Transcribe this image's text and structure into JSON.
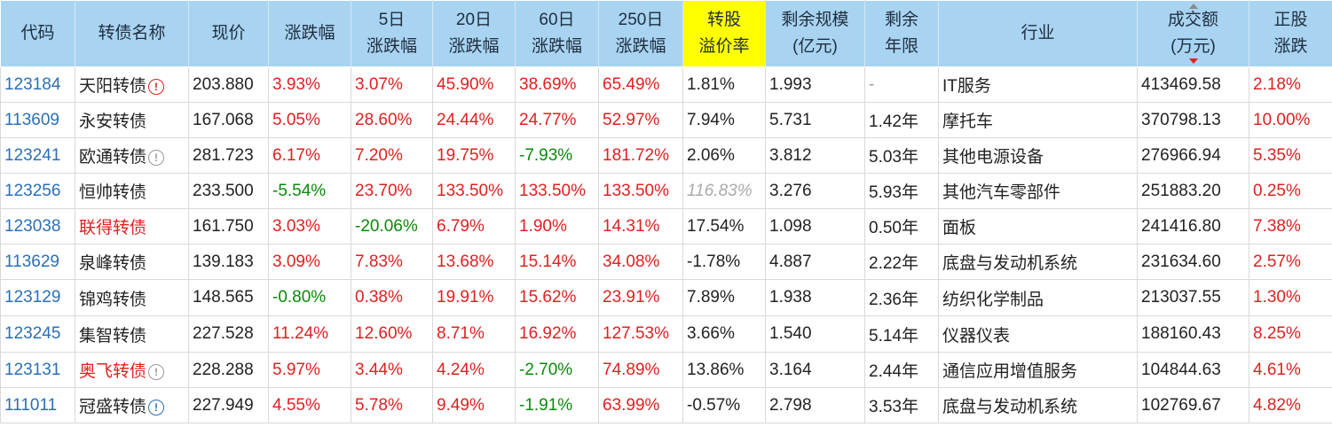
{
  "headers": [
    [
      "代码"
    ],
    [
      "转债名称"
    ],
    [
      "现价"
    ],
    [
      "涨跌幅"
    ],
    [
      "5日",
      "涨跌幅"
    ],
    [
      "20日",
      "涨跌幅"
    ],
    [
      "60日",
      "涨跌幅"
    ],
    [
      "250日",
      "涨跌幅"
    ],
    [
      "转股",
      "溢价率"
    ],
    [
      "剩余规模",
      "(亿元)"
    ],
    [
      "剩余",
      "年限"
    ],
    [
      "行业"
    ],
    [
      "成交额",
      "(万元)"
    ],
    [
      "正股",
      "涨跌"
    ]
  ],
  "rows": [
    {
      "code": "123184",
      "name": "天阳转债",
      "name_red": false,
      "icon": "warn",
      "price": "203.880",
      "chg": "3.93%",
      "c5": "3.07%",
      "c20": "45.90%",
      "c60": "38.69%",
      "c250": "65.49%",
      "prem": "1.81%",
      "prem_gray": false,
      "scale": "1.993",
      "years": "-",
      "industry": "IT服务",
      "turnover": "413469.58",
      "stock": "2.18%"
    },
    {
      "code": "113609",
      "name": "永安转债",
      "name_red": false,
      "icon": "",
      "price": "167.068",
      "chg": "5.05%",
      "c5": "28.60%",
      "c20": "24.44%",
      "c60": "24.77%",
      "c250": "52.97%",
      "prem": "7.94%",
      "prem_gray": false,
      "scale": "5.731",
      "years": "1.42年",
      "industry": "摩托车",
      "turnover": "370798.13",
      "stock": "10.00%"
    },
    {
      "code": "123241",
      "name": "欧通转债",
      "name_red": false,
      "icon": "grey",
      "price": "281.723",
      "chg": "6.17%",
      "c5": "7.20%",
      "c20": "19.75%",
      "c60": "-7.93%",
      "c250": "181.72%",
      "prem": "2.06%",
      "prem_gray": false,
      "scale": "3.812",
      "years": "5.03年",
      "industry": "其他电源设备",
      "turnover": "276966.94",
      "stock": "5.35%"
    },
    {
      "code": "123256",
      "name": "恒帅转债",
      "name_red": false,
      "icon": "",
      "price": "233.500",
      "chg": "-5.54%",
      "c5": "23.70%",
      "c20": "133.50%",
      "c60": "133.50%",
      "c250": "133.50%",
      "prem": "116.83%",
      "prem_gray": true,
      "scale": "3.276",
      "years": "5.93年",
      "industry": "其他汽车零部件",
      "turnover": "251883.20",
      "stock": "0.25%"
    },
    {
      "code": "123038",
      "name": "联得转债",
      "name_red": true,
      "icon": "",
      "price": "161.750",
      "chg": "3.03%",
      "c5": "-20.06%",
      "c20": "6.79%",
      "c60": "1.90%",
      "c250": "14.31%",
      "prem": "17.54%",
      "prem_gray": false,
      "scale": "1.098",
      "years": "0.50年",
      "industry": "面板",
      "turnover": "241416.80",
      "stock": "7.38%"
    },
    {
      "code": "113629",
      "name": "泉峰转债",
      "name_red": false,
      "icon": "",
      "price": "139.183",
      "chg": "3.09%",
      "c5": "7.83%",
      "c20": "13.68%",
      "c60": "15.14%",
      "c250": "34.08%",
      "prem": "-1.78%",
      "prem_gray": false,
      "scale": "4.887",
      "years": "2.22年",
      "industry": "底盘与发动机系统",
      "turnover": "231634.60",
      "stock": "2.57%"
    },
    {
      "code": "123129",
      "name": "锦鸡转债",
      "name_red": false,
      "icon": "",
      "price": "148.565",
      "chg": "-0.80%",
      "c5": "0.38%",
      "c20": "19.91%",
      "c60": "15.62%",
      "c250": "23.91%",
      "prem": "7.89%",
      "prem_gray": false,
      "scale": "1.938",
      "years": "2.36年",
      "industry": "纺织化学制品",
      "turnover": "213037.55",
      "stock": "1.30%"
    },
    {
      "code": "123245",
      "name": "集智转债",
      "name_red": false,
      "icon": "",
      "price": "227.528",
      "chg": "11.24%",
      "c5": "12.60%",
      "c20": "8.71%",
      "c60": "16.92%",
      "c250": "127.53%",
      "prem": "3.66%",
      "prem_gray": false,
      "scale": "1.540",
      "years": "5.14年",
      "industry": "仪器仪表",
      "turnover": "188160.43",
      "stock": "8.25%"
    },
    {
      "code": "123131",
      "name": "奥飞转债",
      "name_red": true,
      "icon": "grey",
      "price": "228.288",
      "chg": "5.97%",
      "c5": "3.44%",
      "c20": "4.24%",
      "c60": "-2.70%",
      "c250": "74.89%",
      "prem": "13.86%",
      "prem_gray": false,
      "scale": "3.164",
      "years": "2.44年",
      "industry": "通信应用增值服务",
      "turnover": "104844.63",
      "stock": "4.61%"
    },
    {
      "code": "111011",
      "name": "冠盛转债",
      "name_red": false,
      "icon": "info",
      "price": "227.949",
      "chg": "4.55%",
      "c5": "5.78%",
      "c20": "9.49%",
      "c60": "-1.91%",
      "c250": "63.99%",
      "prem": "-0.57%",
      "prem_gray": false,
      "scale": "2.798",
      "years": "3.53年",
      "industry": "底盘与发动机系统",
      "turnover": "102769.67",
      "stock": "4.82%"
    }
  ],
  "icons": {
    "warn": "!",
    "grey": "!",
    "info": "!"
  }
}
